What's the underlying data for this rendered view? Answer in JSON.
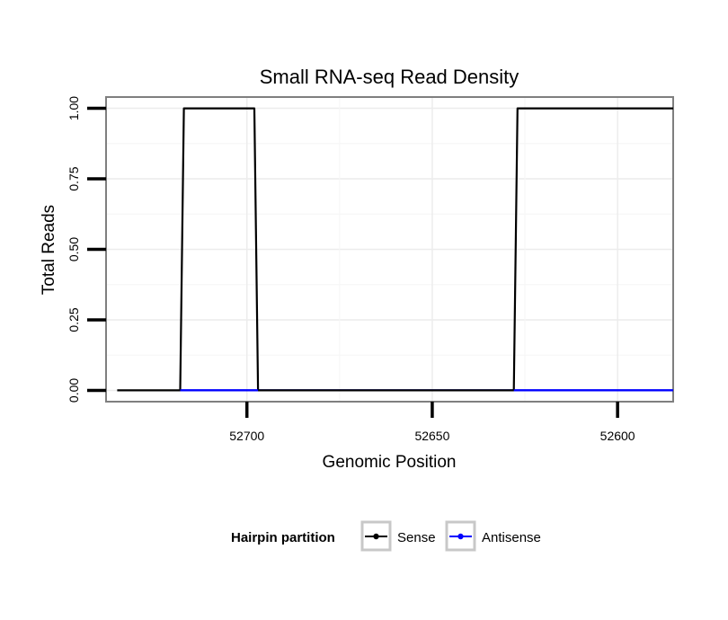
{
  "chart_data": {
    "type": "line",
    "title": "Small RNA-seq Read Density",
    "xlabel": "Genomic Position",
    "ylabel": "Total Reads",
    "xlim": [
      52738,
      52585
    ],
    "x_reversed": true,
    "ylim": [
      -0.04,
      1.04
    ],
    "x_ticks": [
      52700,
      52650,
      52600
    ],
    "x_tick_labels": [
      "52700",
      "52650",
      "52600"
    ],
    "y_ticks": [
      0,
      0.25,
      0.5,
      0.75,
      1.0
    ],
    "y_tick_labels": [
      "0.00",
      "0.25",
      "0.50",
      "0.75",
      "1.00"
    ],
    "grid": true,
    "legend": {
      "title": "Hairpin partition",
      "position": "bottom",
      "entries": [
        "Sense",
        "Antisense"
      ]
    },
    "series": [
      {
        "name": "Sense",
        "color": "#000000",
        "x": [
          52735,
          52718,
          52717,
          52698,
          52697,
          52628,
          52627,
          52585
        ],
        "y": [
          0,
          0,
          1,
          1,
          0,
          0,
          1,
          1
        ]
      },
      {
        "name": "Antisense",
        "color": "#0000ff",
        "x": [
          52718,
          52697,
          52628,
          52585
        ],
        "y": [
          0,
          0,
          0,
          0
        ]
      }
    ]
  }
}
